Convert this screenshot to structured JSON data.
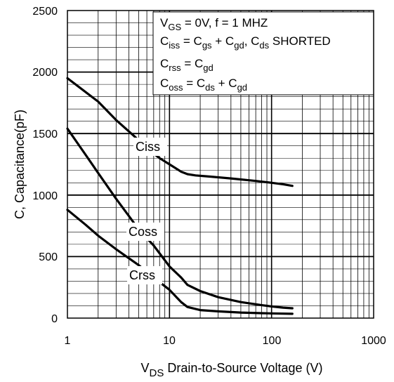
{
  "chart_data": {
    "type": "line",
    "xscale": "log",
    "xlim": [
      1,
      1000
    ],
    "ylim": [
      0,
      2500
    ],
    "xticks": [
      1,
      10,
      100,
      1000
    ],
    "yticks": [
      0,
      500,
      1000,
      1500,
      2000,
      2500
    ],
    "xtick_labels": [
      "1",
      "10",
      "100",
      "1000"
    ],
    "ytick_labels": [
      "0",
      "500",
      "1000",
      "1500",
      "2000",
      "2500"
    ],
    "xlabel_main": "V",
    "xlabel_sub": "DS",
    "xlabel_rest": " Drain-to-Source Voltage (V)",
    "ylabel": "C, Capacitance(pF)",
    "grid": true,
    "legend_box": {
      "line1": {
        "a": "V",
        "a_sub": "GS",
        "b": " = 0V,    f = 1 MHZ"
      },
      "line2": {
        "a": "C",
        "a_sub": "iss",
        "b": " = C",
        "b_sub": "gs",
        "c": " + C",
        "c_sub": "gd",
        "d": ", C",
        "d_sub": "ds",
        "e": "  SHORTED"
      },
      "line3": {
        "a": "C",
        "a_sub": "rss",
        "b": " = C",
        "b_sub": "gd"
      },
      "line4": {
        "a": "C",
        "a_sub": "oss",
        "b": " = C",
        "b_sub": "ds",
        "c": " + C",
        "c_sub": "gd"
      }
    },
    "series": [
      {
        "name": "Ciss",
        "x": [
          1,
          2,
          3,
          4.5,
          6,
          8,
          10,
          13,
          15,
          18,
          25,
          40,
          70,
          100,
          130,
          160
        ],
        "y": [
          1950,
          1760,
          1610,
          1480,
          1380,
          1300,
          1250,
          1190,
          1170,
          1160,
          1150,
          1135,
          1115,
          1100,
          1088,
          1075
        ]
      },
      {
        "name": "Coss",
        "x": [
          1,
          1.5,
          2,
          3,
          4,
          5,
          7,
          10,
          13,
          15,
          20,
          30,
          50,
          80,
          100,
          130,
          160
        ],
        "y": [
          1540,
          1330,
          1180,
          970,
          830,
          720,
          590,
          420,
          330,
          270,
          220,
          170,
          130,
          105,
          95,
          85,
          80
        ]
      },
      {
        "name": "Crss",
        "x": [
          1,
          1.5,
          2,
          3,
          5,
          7,
          10,
          13,
          15,
          20,
          30,
          50,
          80,
          100,
          160
        ],
        "y": [
          880,
          760,
          670,
          560,
          430,
          330,
          230,
          130,
          90,
          65,
          55,
          45,
          40,
          38,
          35
        ]
      }
    ]
  }
}
